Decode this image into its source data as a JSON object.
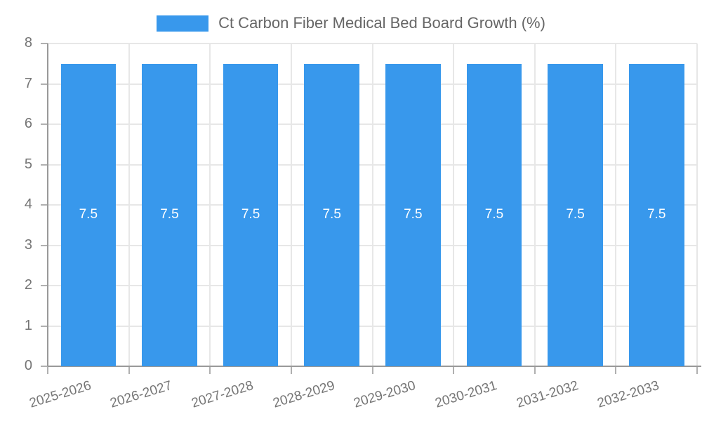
{
  "legend": {
    "label": "Ct Carbon Fiber Medical Bed Board Growth (%)"
  },
  "chart_data": {
    "type": "bar",
    "title": "Ct Carbon Fiber Medical Bed Board Growth (%)",
    "categories": [
      "2025-2026",
      "2026-2027",
      "2027-2028",
      "2028-2029",
      "2029-2030",
      "2030-2031",
      "2031-2032",
      "2032-2033"
    ],
    "series": [
      {
        "name": "Ct Carbon Fiber Medical Bed Board Growth (%)",
        "values": [
          7.5,
          7.5,
          7.5,
          7.5,
          7.5,
          7.5,
          7.5,
          7.5
        ]
      }
    ],
    "bar_value_labels": [
      "7.5",
      "7.5",
      "7.5",
      "7.5",
      "7.5",
      "7.5",
      "7.5",
      "7.5"
    ],
    "xlabel": "",
    "ylabel": "",
    "ylim": [
      0,
      8
    ],
    "yticks": [
      0,
      1,
      2,
      3,
      4,
      5,
      6,
      7,
      8
    ],
    "grid": true,
    "legend_position": "top-center",
    "x_label_rotation_deg": -17,
    "colors": {
      "bar": "#3898ec",
      "bar_label": "#ffffff",
      "axis": "#999999",
      "tick": "#b0b0b0",
      "gridline": "#e7e7e7",
      "tick_label": "#757575",
      "legend_text": "#666666"
    }
  }
}
